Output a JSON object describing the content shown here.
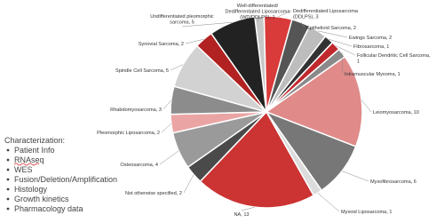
{
  "chart_data": {
    "type": "pie",
    "start_angle": -7,
    "values": [
      1,
      3,
      2,
      2,
      1,
      1,
      1,
      10,
      6,
      1,
      13,
      2,
      4,
      2,
      3,
      5,
      2,
      5
    ],
    "value_labels": [
      [
        "Well-differentiated/",
        "Dedifferentiated Liposarcoma",
        "(WD/DDLPS), 1"
      ],
      [
        "Dedifferentiated Liposarcoma",
        "(DDLPS), 3"
      ],
      [
        "Epithelioid Sarcoma, 2"
      ],
      [
        "Ewings Sarcoma, 2"
      ],
      [
        "Fibrosarcoma, 1"
      ],
      [
        "Follicular Dendritic Cell Sarcoma,",
        "1"
      ],
      [
        "Intramuscular Myxoma, 1"
      ],
      [
        "Leiomyosarcoma, 10"
      ],
      [
        "Myxofibrosarcoma, 6"
      ],
      [
        "Myxoid Liposarcoma, 1"
      ],
      [
        "NA, 13"
      ],
      [
        "Not otherwise specified, 2"
      ],
      [
        "Osteosarcoma, 4"
      ],
      [
        "Pleomorphic Liposarcoma, 2"
      ],
      [
        "Rhabdomyosarcoma, 3"
      ],
      [
        "Spindle Cell Sarcoma, 5"
      ],
      [
        "Synovial Sarcoma, 2"
      ],
      [
        "Undifferentiated pleomorphic",
        "sarcoma, 5"
      ]
    ],
    "colors": [
      "#c8c8c8",
      "#d93a3a",
      "#555555",
      "#bdbdbd",
      "#333333",
      "#c0282d",
      "#8a8a8a",
      "#e08a8a",
      "#777777",
      "#dcdcdc",
      "#cc3333",
      "#4a4a4a",
      "#9a9a9a",
      "#eba4a4",
      "#8c8c8c",
      "#d2d2d2",
      "#b22222",
      "#222222"
    ]
  },
  "side_panel": {
    "heading": "Characterization:",
    "items": [
      "Patient Info",
      "RNAseq",
      "WES",
      "Fusion/Deletion/Amplification",
      "Histology",
      "Growth kinetics",
      "Pharmacology data"
    ]
  }
}
